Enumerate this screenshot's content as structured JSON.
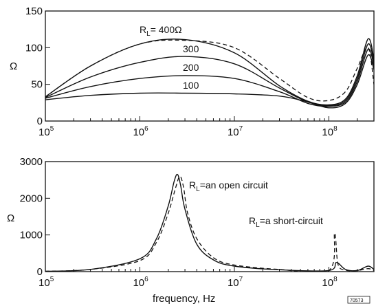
{
  "chart_data": [
    {
      "type": "line",
      "xscale": "log",
      "xlim": [
        100000,
        300000000
      ],
      "ylim": [
        0,
        150
      ],
      "yticks": [
        0,
        50,
        100,
        150
      ],
      "xtick_base": "10",
      "xtick_exponents": [
        "5",
        "6",
        "7",
        "8"
      ],
      "ylabel": "Ω",
      "xlabel": "",
      "grid": false,
      "series": [
        {
          "name": "R_L = 400Ω",
          "x": [
            100000,
            300000,
            1000000,
            3000000,
            10000000,
            30000000,
            60000000,
            100000000,
            150000000,
            200000000,
            260000000,
            300000000
          ],
          "y": [
            33,
            75,
            105,
            111,
            93,
            48,
            27,
            22,
            30,
            62,
            112,
            85
          ],
          "dashed_x": [
            100000,
            300000,
            1000000,
            3000000,
            10000000,
            30000000,
            60000000,
            100000000,
            150000000,
            200000000,
            260000000,
            300000000
          ],
          "dashed_y": [
            33,
            75,
            105,
            110,
            100,
            58,
            32,
            28,
            40,
            72,
            100,
            50
          ]
        },
        {
          "name": "300",
          "x": [
            100000,
            300000,
            1000000,
            3000000,
            10000000,
            30000000,
            60000000,
            100000000,
            150000000,
            200000000,
            260000000,
            300000000
          ],
          "y": [
            32,
            60,
            80,
            88,
            78,
            45,
            26,
            21,
            28,
            58,
            105,
            80
          ]
        },
        {
          "name": "200",
          "x": [
            100000,
            300000,
            1000000,
            3000000,
            10000000,
            30000000,
            60000000,
            100000000,
            150000000,
            200000000,
            260000000,
            300000000
          ],
          "y": [
            31,
            47,
            58,
            62,
            58,
            40,
            24,
            20,
            26,
            54,
            98,
            75
          ]
        },
        {
          "name": "100",
          "x": [
            100000,
            300000,
            1000000,
            3000000,
            10000000,
            30000000,
            60000000,
            100000000,
            150000000,
            200000000,
            260000000,
            300000000
          ],
          "y": [
            29,
            35,
            38,
            38,
            37,
            34,
            26,
            18,
            24,
            50,
            90,
            70
          ]
        }
      ],
      "annotations": {
        "r400_main": "R",
        "r400_sub": "L",
        "r400_rest": "= 400Ω",
        "r300": "300",
        "r200": "200",
        "r100": "100"
      }
    },
    {
      "type": "line",
      "xscale": "log",
      "xlim": [
        100000,
        300000000
      ],
      "ylim": [
        0,
        3000
      ],
      "yticks": [
        0,
        1000,
        2000,
        3000
      ],
      "xtick_base": "10",
      "xtick_exponents": [
        "5",
        "6",
        "7",
        "8"
      ],
      "ylabel": "Ω",
      "xlabel": "frequency, Hz",
      "grid": false,
      "series": [
        {
          "name": "R_L = an open circuit",
          "x": [
            100000,
            300000,
            1000000,
            1500000,
            2000000,
            2300000,
            2500000,
            2700000,
            3000000,
            4000000,
            6000000,
            10000000,
            30000000,
            100000000,
            120000000,
            150000000,
            200000000,
            260000000,
            300000000
          ],
          "y": [
            10,
            60,
            350,
            900,
            1800,
            2450,
            2650,
            2350,
            1700,
            750,
            320,
            150,
            50,
            30,
            250,
            60,
            30,
            150,
            60
          ],
          "dashed_x": [
            100000,
            300000,
            1000000,
            1500000,
            2000000,
            2400000,
            2650000,
            2900000,
            3200000,
            4000000,
            6000000,
            10000000,
            30000000,
            100000000,
            115000000,
            125000000,
            150000000,
            200000000,
            260000000,
            300000000
          ],
          "dashed_y": [
            10,
            60,
            300,
            800,
            1600,
            2300,
            2600,
            2300,
            1600,
            900,
            380,
            180,
            60,
            30,
            1050,
            200,
            40,
            30,
            80,
            30
          ]
        }
      ],
      "annotations": {
        "open_main": "R",
        "open_sub": "L",
        "open_rest": "=an open circuit",
        "short_main": "R",
        "short_sub": "L",
        "short_rest": "=a short-circuit"
      }
    }
  ],
  "badge": "70573"
}
